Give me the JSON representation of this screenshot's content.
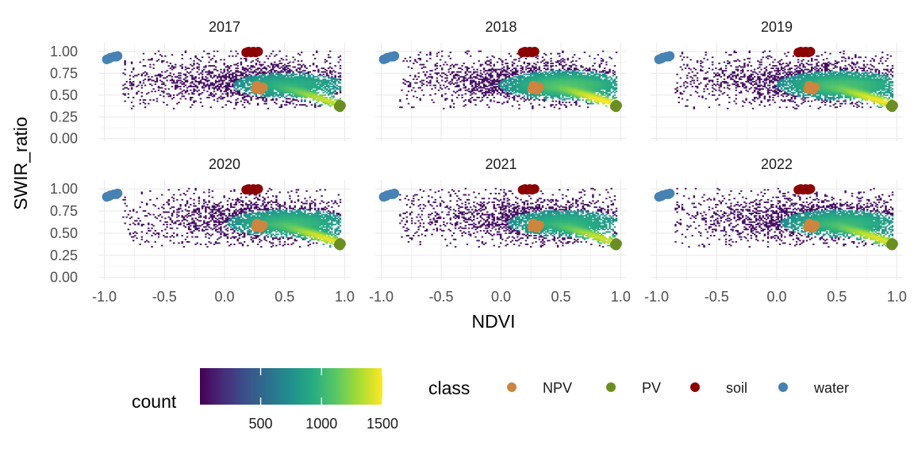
{
  "chart_data": {
    "type": "heatmap",
    "subtype": "faceted 2D histogram (bin2d) with class centroid points overlaid",
    "facets": [
      "2017",
      "2018",
      "2019",
      "2020",
      "2021",
      "2022"
    ],
    "facet_layout": {
      "ncol": 3,
      "nrow": 2
    },
    "xlabel": "NDVI",
    "ylabel": "SWIR_ratio",
    "xlim": [
      -1.05,
      1.05
    ],
    "ylim": [
      -0.03,
      1.1
    ],
    "x_ticks": [
      -1.0,
      -0.5,
      0.0,
      0.5,
      1.0
    ],
    "x_tick_labels": [
      "-1.0",
      "-0.5",
      "0.0",
      "0.5",
      "1.0"
    ],
    "y_ticks": [
      0.0,
      0.25,
      0.5,
      0.75,
      1.0
    ],
    "y_tick_labels": [
      "0.00",
      "0.25",
      "0.50",
      "0.75",
      "1.00"
    ],
    "grid": true,
    "fill": {
      "title": "count",
      "colormap": "viridis",
      "range": [
        1,
        1500
      ],
      "breaks": [
        500,
        1000,
        1500
      ],
      "break_labels": [
        "500",
        "1000",
        "1500"
      ]
    },
    "density_ridge": {
      "description": "Main pixel density runs along a ridge; brightest near high NDVI",
      "x": [
        0.45,
        0.55,
        0.65,
        0.75,
        0.85,
        0.92
      ],
      "y": [
        0.58,
        0.55,
        0.51,
        0.47,
        0.43,
        0.4
      ],
      "peak_count": 1500
    },
    "facet_density_scale": {
      "2017": 0.55,
      "2018": 1.0,
      "2019": 0.9,
      "2020": 0.75,
      "2021": 0.6,
      "2022": 0.7
    },
    "legend_class": {
      "title": "class",
      "entries": [
        {
          "name": "NPV",
          "color": "#cd853f"
        },
        {
          "name": "PV",
          "color": "#6b8e23"
        },
        {
          "name": "soil",
          "color": "#8b0000"
        },
        {
          "name": "water",
          "color": "#4682b4"
        }
      ]
    },
    "class_points": {
      "NPV": {
        "color": "#cd853f",
        "x": [
          0.26,
          0.28,
          0.3,
          0.32,
          0.27,
          0.31,
          0.29
        ],
        "y": [
          0.57,
          0.6,
          0.56,
          0.59,
          0.61,
          0.58,
          0.59
        ]
      },
      "PV": {
        "color": "#6b8e23",
        "x": [
          0.95,
          0.96,
          0.97,
          0.96
        ],
        "y": [
          0.37,
          0.39,
          0.38,
          0.36
        ]
      },
      "soil": {
        "color": "#8b0000",
        "x": [
          0.18,
          0.2,
          0.22,
          0.24,
          0.26,
          0.28
        ],
        "y": [
          0.99,
          1.0,
          0.99,
          1.0,
          0.99,
          1.0
        ]
      },
      "water": {
        "color": "#4682b4",
        "x": [
          -0.98,
          -0.95,
          -0.92,
          -0.89,
          -0.96,
          -0.9
        ],
        "y": [
          0.91,
          0.93,
          0.94,
          0.95,
          0.92,
          0.94
        ]
      }
    }
  }
}
